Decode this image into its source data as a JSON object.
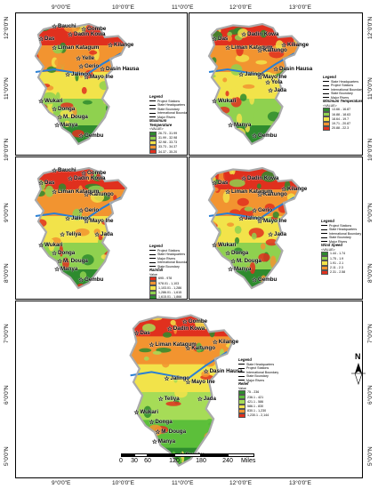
{
  "axes": {
    "top_ticks": [
      "9°0'0\"E",
      "10°0'0\"E",
      "11°0'0\"E",
      "12°0'0\"E",
      "13°0'0\"E"
    ],
    "bottom_ticks": [
      "9°0'0\"E",
      "10°0'0\"E",
      "11°0'0\"E",
      "12°0'0\"E",
      "13°0'0\"E"
    ],
    "left_ticks": [
      "12°0'0\"N",
      "11°0'0\"N",
      "10°0'0\"N",
      "9°0'0\"N",
      "8°0'0\"N",
      "7°0'0\"N",
      "6°0'0\"N",
      "5°0'0\"N"
    ],
    "right_ticks": [
      "12°0'0\"N",
      "11°0'0\"N",
      "10°0'0\"N",
      "9°0'0\"N",
      "8°0'0\"N",
      "7°0'0\"N",
      "6°0'0\"N",
      "5°0'0\"N"
    ]
  },
  "panels": [
    {
      "id": "max-temp",
      "labels": [
        "Das",
        "Bauchi",
        "Gombe",
        "Dadin Kowa",
        "Liman Katagum",
        "Yelle",
        "Kilange",
        "Gerio",
        "Jalingo",
        "Dasin Hausa",
        "Mayo Ine",
        "Wukari",
        "Donga",
        "M. Douga",
        "Manya",
        "Gembu"
      ],
      "legend": {
        "title": "Legend",
        "items": [
          "Project Stations",
          "State Headquarters",
          "State Boundary",
          "International Boundary",
          "Major Rivers"
        ],
        "var_title": "Maximum Temperature",
        "value_label": "<VALUE>",
        "classes": [
          "26.73 - 31.99",
          "31.99 - 32.98",
          "32.98 - 33.73",
          "33.73 - 34.37",
          "34.37 - 35.20"
        ],
        "colors": [
          "#2e8b2e",
          "#8fd14f",
          "#f2e34a",
          "#f29430",
          "#e0301e"
        ]
      }
    },
    {
      "id": "min-temp",
      "labels": [
        "Das",
        "Liman Katagum",
        "Dadin Kowa",
        "Kiliange",
        "Kaltungo",
        "Dasin Hausa",
        "Mayo Ine",
        "Jada",
        "Jalingo",
        "Yola",
        "Wukari",
        "Manya",
        "Gembu"
      ],
      "legend": {
        "title": "Legend",
        "items": [
          "State Headquarters",
          "Project Stations",
          "International Boundary",
          "State Boundary",
          "Major Rivers"
        ],
        "var_title": "Minimum Temperature",
        "value_label": "<VALUE>",
        "classes": [
          "13.66 - 16.87",
          "16.88 - 18.63",
          "18.64 - 19.7",
          "19.71 - 20.87",
          "20.88 - 22.3"
        ],
        "colors": [
          "#2e8b2e",
          "#8fd14f",
          "#f2e34a",
          "#f29430",
          "#e0301e"
        ]
      }
    },
    {
      "id": "rainfall",
      "labels": [
        "Bauchi",
        "Das",
        "Gombe",
        "Dadin Kowa",
        "Kaltungo",
        "Liman Katagum",
        "Gerio",
        "Mayo Ine",
        "Jalingo",
        "Teliya",
        "Jada",
        "Wukari",
        "Donga",
        "Manya",
        "M. Douga",
        "Gembu"
      ],
      "legend": {
        "title": "Legend",
        "items": [
          "Project Stations",
          "State Headquarters",
          "Major Rivers",
          "International Boundary",
          "State Boundary"
        ],
        "var_title": "Rainfall",
        "value_label": "Value",
        "classes": [
          "695 - 978",
          "978.01 - 1,103",
          "1,103.01 - 1,286",
          "1,286.01 - 1,615",
          "1,615.01 - 1,866"
        ],
        "colors": [
          "#e0301e",
          "#f29430",
          "#f2e34a",
          "#8fd14f",
          "#2e8b2e"
        ]
      }
    },
    {
      "id": "wind-speed",
      "labels": [
        "Dadin Kowa",
        "Das",
        "Kaltungo",
        "Liman Katagum",
        "Kilange",
        "Jalingo",
        "Gerio",
        "Mayo Ine",
        "Jada",
        "Wukari",
        "Donga",
        "M. Douga",
        "Manya",
        "Gembu"
      ],
      "legend": {
        "title": "Legend",
        "items": [
          "Project Stations",
          "State Headquarters",
          "International Boundary",
          "State Boundary",
          "Major Rivers"
        ],
        "var_title": "Wind Speed",
        "value_label": "<VALUE>",
        "classes": [
          "1.44 - 1.74",
          "1.75 - 1.9",
          "1.91 - 2.1",
          "2.11 - 2.3",
          "2.31 - 2.58"
        ],
        "colors": [
          "#2e8b2e",
          "#8fd14f",
          "#f2e34a",
          "#f29430",
          "#e0301e"
        ]
      }
    },
    {
      "id": "relief",
      "labels": [
        "Gombe",
        "Dadin Kowa",
        "Das",
        "Liman Katagum",
        "Kaltungo",
        "Kilange",
        "Mayo Ine",
        "Dasin Hausa",
        "Jalingo",
        "Teliya",
        "Jada",
        "Wukari",
        "Donga",
        "M. Douga",
        "Manya",
        "Gembu"
      ],
      "legend": {
        "title": "Legend",
        "items": [
          "State Headquarters",
          "Project Stations",
          "International Boundary",
          "State Boundary",
          "Major Rivers"
        ],
        "var_title": "Relief",
        "value_label": "Value",
        "classes": [
          "75 - 236",
          "236.1 - 421",
          "421.1 - 586",
          "586.1 - 830",
          "830.1 - 1,230",
          "1,230.1 - 2,144"
        ],
        "colors": [
          "#2e8b2e",
          "#5cbf3a",
          "#a6dc57",
          "#f2e34a",
          "#f29430",
          "#e0301e"
        ]
      }
    }
  ],
  "scale": {
    "ticks": [
      "0",
      "30",
      "60",
      "120",
      "180",
      "240"
    ],
    "unit": "Miles"
  },
  "north": {
    "letter": "N"
  }
}
